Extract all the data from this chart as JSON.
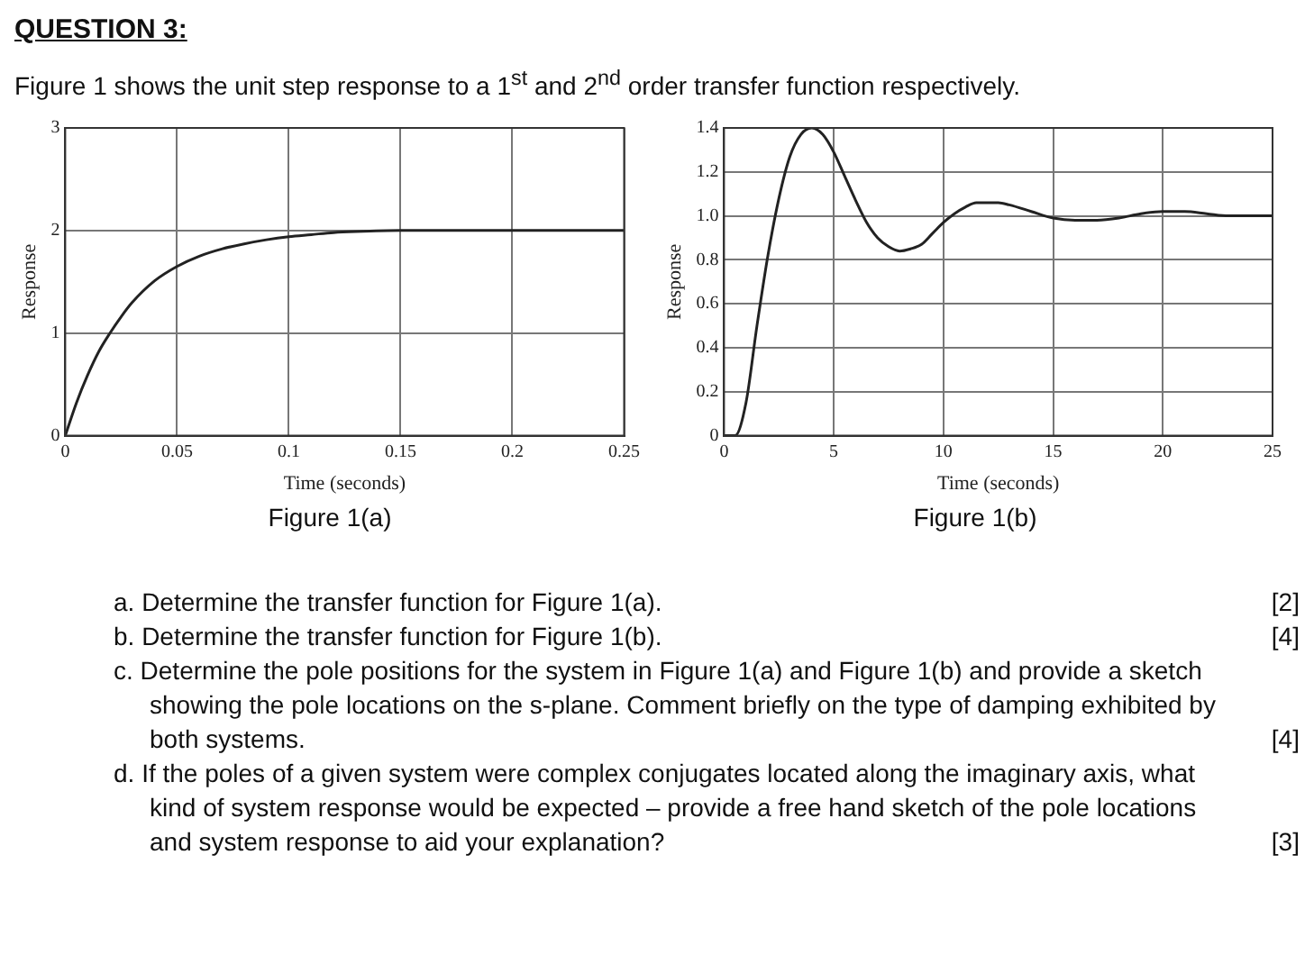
{
  "chart_data": [
    {
      "type": "line",
      "title": "QUESTION 3:",
      "subtitle": "Figure 1 shows the unit step response to a 1$^{st}$ and 2$^{nd}$ order transfer function respectively.",
      "xlabel": "Time (seconds)",
      "ylabel": "Response",
      "annotations": [
        "Figure 1(a)"
      ],
      "x": [
        0,
        0.005,
        0.01,
        0.015,
        0.02,
        0.025,
        0.03,
        0.04,
        0.05,
        0.06,
        0.07,
        0.08,
        0.09,
        0.1,
        0.11,
        0.12,
        0.13,
        0.15,
        0.2,
        0.25
      ],
      "values": [
        0,
        0.32,
        0.59,
        0.82,
        1.0,
        1.16,
        1.3,
        1.51,
        1.65,
        1.75,
        1.82,
        1.87,
        1.91,
        1.94,
        1.96,
        1.98,
        1.99,
        2.0,
        2.0,
        2.0
      ],
      "color": "#222222",
      "line_style": "solid",
      "xlim": [
        0,
        0.25
      ],
      "ylim": [
        0,
        3
      ],
      "xticks": [
        0,
        0.05,
        0.1,
        0.15,
        0.2,
        0.25
      ],
      "yticks": [
        0,
        1,
        2,
        3
      ],
      "grid": true
    },
    {
      "type": "line",
      "xlabel": "Time (seconds)",
      "ylabel": "Response",
      "annotations": [
        "Figure 1(b)",
        "a. Determine the transfer function for Figure 1(a).",
        "[2]",
        "b. Determine the transfer function for Figure 1(b).",
        "[4]",
        "c. Determine the pole positions for the system in Figure 1(a) and Figure 1(b) and provide a sketch showing the pole locations on the s-plane. Comment briefly on the type of damping exhibited by both systems.",
        "[4]",
        "d. If the poles of a given system were complex conjugates located along the imaginary axis, what kind of system response would be expected – provide a free hand sketch of the pole locations and system response to aid your explanation?",
        "[3]"
      ],
      "x": [
        0,
        0.5,
        1,
        1.5,
        2,
        2.5,
        3,
        3.5,
        4,
        4.5,
        5,
        5.5,
        6,
        6.5,
        7,
        7.5,
        8,
        8.5,
        9,
        9.5,
        10,
        10.5,
        11,
        11.5,
        12,
        12.5,
        13,
        14,
        15,
        16,
        17,
        18,
        19,
        20,
        21,
        22,
        23,
        25
      ],
      "values": [
        0,
        0,
        0.15,
        0.5,
        0.82,
        1.08,
        1.27,
        1.37,
        1.4,
        1.37,
        1.29,
        1.18,
        1.07,
        0.97,
        0.9,
        0.86,
        0.84,
        0.85,
        0.87,
        0.92,
        0.97,
        1.01,
        1.04,
        1.06,
        1.06,
        1.06,
        1.05,
        1.02,
        0.99,
        0.98,
        0.98,
        0.99,
        1.01,
        1.02,
        1.02,
        1.01,
        1.0,
        1.0
      ],
      "color": "#222222",
      "line_style": "solid",
      "xlim": [
        0,
        25
      ],
      "ylim": [
        0,
        1.4
      ],
      "xticks": [
        0,
        5,
        10,
        15,
        20,
        25
      ],
      "yticks": [
        0,
        0.2,
        0.4,
        0.6,
        0.8,
        {
          "value": 1,
          "label": "1.0"
        },
        1.2,
        1.4
      ],
      "grid": true
    }
  ]
}
